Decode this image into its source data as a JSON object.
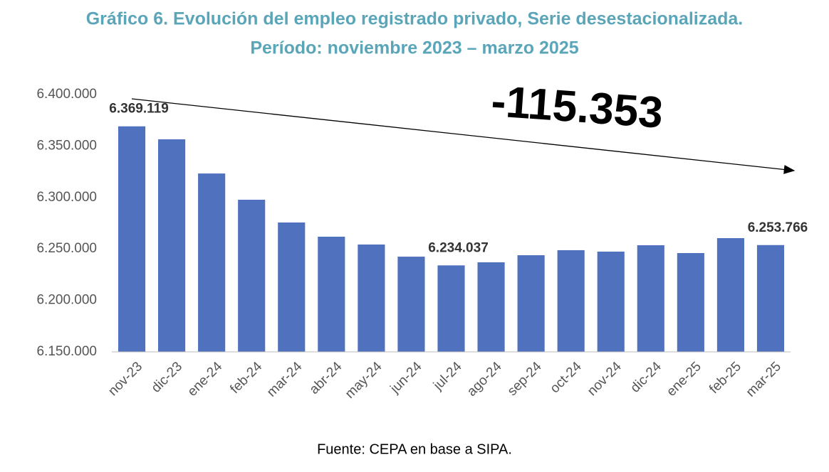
{
  "chart_data": {
    "type": "bar",
    "title": "Gráfico 6. Evolución del empleo registrado privado, Serie desestacionalizada.",
    "subtitle": "Período: noviembre 2023 – marzo 2025",
    "categories": [
      "nov-23",
      "dic-23",
      "ene-24",
      "feb-24",
      "mar-24",
      "abr-24",
      "may-24",
      "jun-24",
      "jul-24",
      "ago-24",
      "sep-24",
      "oct-24",
      "nov-24",
      "dic-24",
      "ene-25",
      "feb-25",
      "mar-25"
    ],
    "values": [
      6369119,
      6356500,
      6323300,
      6297800,
      6275700,
      6261900,
      6254300,
      6242500,
      6234037,
      6237000,
      6243900,
      6248800,
      6247400,
      6253600,
      6246000,
      6260500,
      6253766
    ],
    "value_labels": [
      "6.369.119",
      null,
      null,
      null,
      null,
      null,
      null,
      null,
      "6.234.037",
      null,
      null,
      null,
      null,
      null,
      null,
      null,
      "6.253.766"
    ],
    "color": "#4f71be",
    "ylim": [
      6150000,
      6400000
    ],
    "yticks": [
      {
        "value": 6150000,
        "label": "6.150.000"
      },
      {
        "value": 6200000,
        "label": "6.200.000"
      },
      {
        "value": 6250000,
        "label": "6.250.000"
      },
      {
        "value": 6300000,
        "label": "6.300.000"
      },
      {
        "value": 6350000,
        "label": "6.350.000"
      },
      {
        "value": 6400000,
        "label": "6.400.000"
      }
    ],
    "grid": false,
    "annotation": "-115.353",
    "source": "Fuente: CEPA en base a SIPA."
  }
}
